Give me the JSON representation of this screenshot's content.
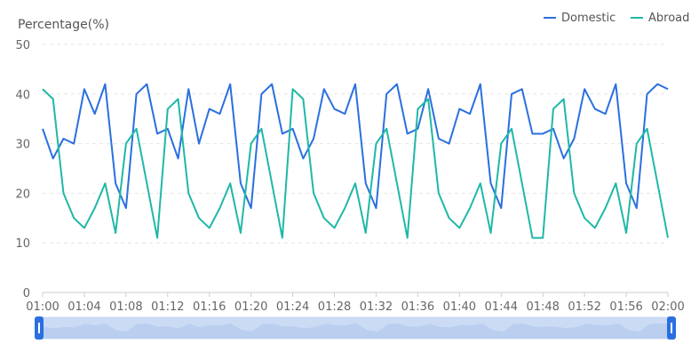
{
  "chart_data": {
    "type": "line",
    "ylabel": "Percentage(%)",
    "ylim": [
      0,
      50
    ],
    "yticks": [
      0,
      10,
      20,
      30,
      40,
      50
    ],
    "x": [
      "01:00",
      "01:01",
      "01:02",
      "01:03",
      "01:04",
      "01:05",
      "01:06",
      "01:07",
      "01:08",
      "01:09",
      "01:10",
      "01:11",
      "01:12",
      "01:13",
      "01:14",
      "01:15",
      "01:16",
      "01:17",
      "01:18",
      "01:19",
      "01:20",
      "01:21",
      "01:22",
      "01:23",
      "01:24",
      "01:25",
      "01:26",
      "01:27",
      "01:28",
      "01:29",
      "01:30",
      "01:31",
      "01:32",
      "01:33",
      "01:34",
      "01:35",
      "01:36",
      "01:37",
      "01:38",
      "01:39",
      "01:40",
      "01:41",
      "01:42",
      "01:43",
      "01:44",
      "01:45",
      "01:46",
      "01:47",
      "01:48",
      "01:49",
      "01:50",
      "01:51",
      "01:52",
      "01:53",
      "01:54",
      "01:55",
      "01:56",
      "01:57",
      "01:58",
      "01:59",
      "02:00"
    ],
    "xtick_labels": [
      "01:00",
      "01:04",
      "01:08",
      "01:12",
      "01:16",
      "01:20",
      "01:24",
      "01:28",
      "01:32",
      "01:36",
      "01:40",
      "01:44",
      "01:48",
      "01:52",
      "01:56",
      "02:00"
    ],
    "grid": true,
    "legend_position": "top-right",
    "series": [
      {
        "name": "Domestic",
        "color": "#2a6fe0",
        "values": [
          33,
          27,
          31,
          30,
          41,
          36,
          42,
          22,
          17,
          40,
          42,
          32,
          33,
          27,
          41,
          30,
          37,
          36,
          42,
          22,
          17,
          40,
          42,
          32,
          33,
          27,
          31,
          41,
          37,
          36,
          42,
          22,
          17,
          40,
          42,
          32,
          33,
          41,
          31,
          30,
          37,
          36,
          42,
          22,
          17,
          40,
          41,
          32,
          32,
          33,
          27,
          31,
          41,
          37,
          36,
          42,
          22,
          17,
          40,
          42,
          41
        ]
      },
      {
        "name": "Abroad",
        "color": "#1fb8a6",
        "values": [
          41,
          39,
          20,
          15,
          13,
          17,
          22,
          12,
          30,
          33,
          22,
          11,
          37,
          39,
          20,
          15,
          13,
          17,
          22,
          12,
          30,
          33,
          22,
          11,
          41,
          39,
          20,
          15,
          13,
          17,
          22,
          12,
          30,
          33,
          22,
          11,
          37,
          39,
          20,
          15,
          13,
          17,
          22,
          12,
          30,
          33,
          22,
          11,
          11,
          37,
          39,
          20,
          15,
          13,
          17,
          22,
          12,
          30,
          33,
          22,
          11
        ]
      }
    ]
  }
}
